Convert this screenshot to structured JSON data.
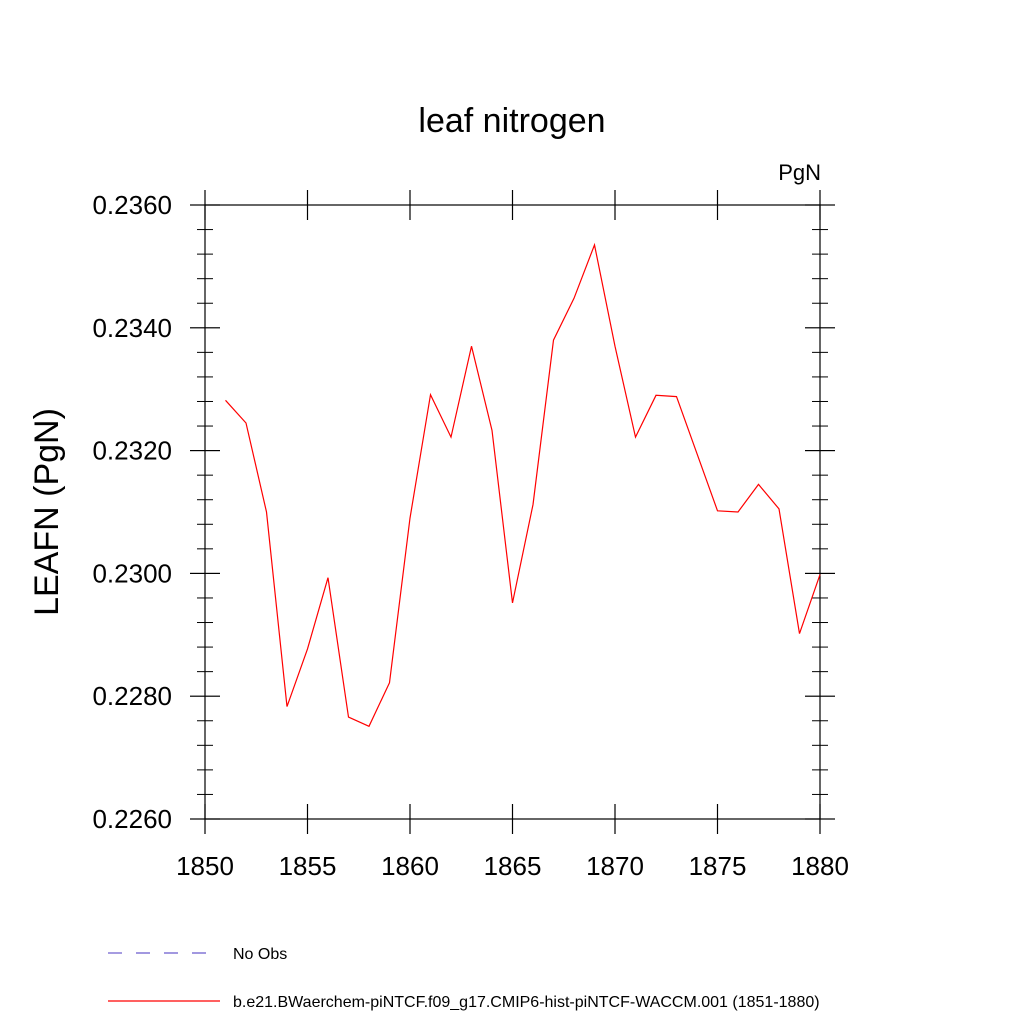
{
  "chart_data": {
    "type": "line",
    "title": "leaf nitrogen",
    "units_label": "PgN",
    "ylabel": "LEAFN  (PgN)",
    "xlabel": "",
    "xlim": [
      1850,
      1880
    ],
    "ylim": [
      0.226,
      0.236
    ],
    "x_ticks": [
      1850,
      1855,
      1860,
      1865,
      1870,
      1875,
      1880
    ],
    "x_tick_labels": [
      "1850",
      "1855",
      "1860",
      "1865",
      "1870",
      "1875",
      "1880"
    ],
    "y_ticks": [
      0.226,
      0.228,
      0.23,
      0.232,
      0.234,
      0.236
    ],
    "y_tick_labels": [
      "0.2260",
      "0.2280",
      "0.2300",
      "0.2320",
      "0.2340",
      "0.2360"
    ],
    "grid": false,
    "legend_position": "bottom",
    "series": [
      {
        "name": "b.e21.BWaerchem-piNTCF.f09_g17.CMIP6-hist-piNTCF-WACCM.001 (1851-1880)",
        "color": "#ff0000",
        "x": [
          1851,
          1852,
          1853,
          1854,
          1855,
          1856,
          1857,
          1858,
          1859,
          1860,
          1861,
          1862,
          1863,
          1864,
          1865,
          1866,
          1867,
          1868,
          1869,
          1870,
          1871,
          1872,
          1873,
          1874,
          1875,
          1876,
          1877,
          1878,
          1879,
          1880
        ],
        "y": [
          0.23282,
          0.23245,
          0.231,
          0.22783,
          0.22877,
          0.22993,
          0.22766,
          0.22751,
          0.22822,
          0.2309,
          0.23291,
          0.23222,
          0.2337,
          0.23233,
          0.22952,
          0.23112,
          0.2338,
          0.23448,
          0.23535,
          0.2337,
          0.23222,
          0.2329,
          0.23288,
          0.23195,
          0.23102,
          0.231,
          0.23145,
          0.23105,
          0.22902,
          0.22998
        ]
      }
    ],
    "legend": [
      {
        "label": "No Obs",
        "color": "#6a5acd",
        "dash": true
      },
      {
        "label": "b.e21.BWaerchem-piNTCF.f09_g17.CMIP6-hist-piNTCF-WACCM.001 (1851-1880)",
        "color": "#ff0000",
        "dash": false
      }
    ]
  }
}
